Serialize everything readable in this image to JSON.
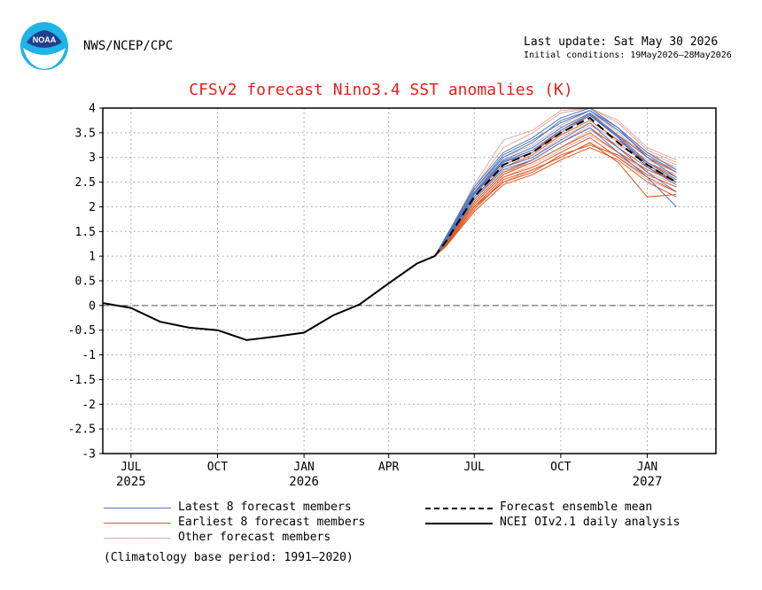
{
  "header": {
    "agency": "NWS/NCEP/CPC",
    "last_update": "Last update: Sat May 30 2026",
    "initial_conditions": "Initial conditions: 19May2026–28May2026",
    "logo_text": "NOAA"
  },
  "chart_data": {
    "type": "line",
    "title": "CFSv2 forecast Nino3.4 SST anomalies (K)",
    "xlabel": "",
    "ylabel": "",
    "ylim": [
      -3,
      4
    ],
    "yticks": [
      4,
      3.5,
      3,
      2.5,
      2,
      1.5,
      1,
      0.5,
      0,
      -0.5,
      -1,
      -1.5,
      -2,
      -2.5,
      -3
    ],
    "yticklabels": [
      "4",
      "3.5",
      "3",
      "2.5",
      "2",
      "1.5",
      "1",
      "0.5",
      "0",
      "-0.5",
      "-1",
      "-1.5",
      "-2",
      "-2.5",
      "-3"
    ],
    "xlim": [
      "2025-06-01",
      "2027-03-15"
    ],
    "xticks": [
      {
        "date": "2025-07-01",
        "month": "JUL",
        "year": "2025"
      },
      {
        "date": "2025-10-01",
        "month": "OCT",
        "year": ""
      },
      {
        "date": "2026-01-01",
        "month": "JAN",
        "year": "2026"
      },
      {
        "date": "2026-04-01",
        "month": "APR",
        "year": ""
      },
      {
        "date": "2026-07-01",
        "month": "JUL",
        "year": ""
      },
      {
        "date": "2026-10-01",
        "month": "OCT",
        "year": ""
      },
      {
        "date": "2027-01-01",
        "month": "JAN",
        "year": "2027"
      }
    ],
    "grid": true,
    "zero_line": true,
    "series": [
      {
        "name": "NCEI OIv2.1 daily analysis",
        "color": "#000000",
        "style": "solid",
        "x": [
          "2025-06-01",
          "2025-07-01",
          "2025-08-01",
          "2025-09-01",
          "2025-10-01",
          "2025-11-01",
          "2025-12-01",
          "2026-01-01",
          "2026-02-01",
          "2026-03-01",
          "2026-04-01",
          "2026-05-01",
          "2026-05-20"
        ],
        "values": [
          0.05,
          -0.05,
          -0.33,
          -0.45,
          -0.5,
          -0.7,
          -0.63,
          -0.55,
          -0.2,
          0.02,
          0.45,
          0.85,
          1.0
        ]
      },
      {
        "name": "Forecast ensemble mean",
        "color": "#000000",
        "style": "dashed",
        "x": [
          "2026-05-20",
          "2026-06-01",
          "2026-07-01",
          "2026-08-01",
          "2026-09-01",
          "2026-10-01",
          "2026-11-01",
          "2026-12-01",
          "2027-01-01",
          "2027-02-01"
        ],
        "values": [
          1.0,
          1.3,
          2.2,
          2.85,
          3.1,
          3.5,
          3.8,
          3.3,
          2.85,
          2.5
        ]
      }
    ],
    "ensemble_x": [
      "2026-05-20",
      "2026-06-01",
      "2026-07-01",
      "2026-08-01",
      "2026-09-01",
      "2026-10-01",
      "2026-11-01",
      "2026-12-01",
      "2027-01-01",
      "2027-02-01"
    ],
    "ensemble_groups": [
      {
        "name": "Latest 8 forecast members",
        "color": "#4a76c4",
        "members": [
          [
            1.0,
            1.35,
            2.3,
            2.95,
            3.2,
            3.6,
            3.9,
            3.45,
            2.9,
            2.55
          ],
          [
            1.0,
            1.4,
            2.4,
            3.1,
            3.4,
            3.8,
            4.0,
            3.6,
            3.0,
            2.6
          ],
          [
            1.0,
            1.3,
            2.2,
            2.8,
            3.0,
            3.35,
            3.7,
            3.2,
            2.7,
            2.3
          ],
          [
            1.0,
            1.38,
            2.35,
            3.0,
            3.3,
            3.75,
            3.95,
            3.55,
            3.05,
            2.7
          ],
          [
            1.0,
            1.32,
            2.25,
            2.9,
            3.1,
            3.5,
            3.85,
            3.4,
            2.8,
            2.45
          ],
          [
            1.0,
            1.36,
            2.35,
            3.05,
            3.35,
            3.7,
            3.95,
            3.6,
            3.1,
            2.75
          ],
          [
            1.0,
            1.28,
            2.15,
            2.75,
            2.95,
            3.3,
            3.6,
            3.1,
            2.6,
            2.0
          ],
          [
            1.0,
            1.33,
            2.28,
            2.92,
            3.15,
            3.55,
            3.88,
            3.42,
            2.85,
            2.5
          ]
        ]
      },
      {
        "name": "Earliest 8 forecast members",
        "color": "#e2541a",
        "members": [
          [
            1.0,
            1.25,
            2.0,
            2.6,
            2.8,
            3.1,
            3.4,
            3.0,
            2.6,
            2.3
          ],
          [
            1.0,
            1.22,
            1.95,
            2.55,
            2.75,
            3.0,
            3.3,
            2.9,
            2.2,
            2.25
          ],
          [
            1.0,
            1.28,
            2.1,
            2.7,
            2.95,
            3.3,
            3.6,
            3.2,
            2.8,
            2.5
          ],
          [
            1.0,
            1.3,
            2.2,
            2.8,
            3.05,
            3.45,
            3.75,
            3.35,
            2.9,
            2.6
          ],
          [
            1.0,
            1.2,
            1.9,
            2.45,
            2.65,
            2.95,
            3.2,
            2.95,
            2.5,
            2.2
          ],
          [
            1.0,
            1.27,
            2.05,
            2.65,
            2.9,
            3.2,
            3.5,
            3.1,
            2.75,
            2.5
          ],
          [
            1.0,
            1.32,
            2.25,
            2.85,
            3.1,
            3.55,
            3.85,
            3.45,
            3.0,
            2.7
          ],
          [
            1.0,
            1.24,
            2.0,
            2.5,
            2.7,
            3.05,
            3.25,
            3.05,
            2.65,
            2.4
          ]
        ]
      },
      {
        "name": "Other forecast members",
        "color": "#e8a89a",
        "members": [
          [
            1.0,
            1.35,
            2.4,
            3.2,
            3.5,
            3.9,
            4.0,
            3.7,
            3.15,
            2.9
          ],
          [
            1.0,
            1.3,
            2.3,
            3.0,
            3.25,
            3.65,
            3.95,
            3.5,
            3.0,
            2.75
          ],
          [
            1.0,
            1.25,
            2.1,
            2.7,
            2.9,
            3.2,
            3.55,
            3.25,
            2.9,
            2.65
          ],
          [
            1.0,
            1.28,
            2.15,
            2.8,
            3.0,
            3.4,
            3.7,
            3.3,
            2.85,
            2.55
          ],
          [
            1.0,
            1.22,
            2.0,
            2.6,
            2.85,
            3.15,
            3.45,
            3.1,
            2.7,
            2.45
          ],
          [
            1.0,
            1.38,
            2.45,
            3.35,
            3.55,
            3.95,
            4.0,
            3.75,
            3.2,
            2.95
          ],
          [
            1.0,
            1.2,
            1.95,
            2.5,
            2.75,
            3.0,
            3.3,
            3.0,
            2.55,
            2.3
          ],
          [
            1.0,
            1.33,
            2.3,
            2.95,
            3.2,
            3.6,
            3.9,
            3.55,
            3.1,
            2.85
          ],
          [
            1.0,
            1.26,
            2.05,
            2.65,
            2.95,
            3.3,
            3.65,
            3.35,
            2.95,
            2.7
          ],
          [
            1.0,
            1.31,
            2.25,
            2.9,
            3.15,
            3.5,
            3.85,
            3.45,
            3.05,
            2.8
          ]
        ]
      }
    ],
    "legend": {
      "placement": "bottom",
      "entries": [
        {
          "label": "Latest 8 forecast members",
          "color": "#4a76c4",
          "style": "thin"
        },
        {
          "label": "Earliest 8 forecast members",
          "color": "#e2541a",
          "style": "thin"
        },
        {
          "label": "Other forecast members",
          "color": "#e8a89a",
          "style": "thin"
        },
        {
          "label": "Forecast ensemble mean",
          "color": "#000000",
          "style": "dashed"
        },
        {
          "label": "NCEI OIv2.1 daily analysis",
          "color": "#000000",
          "style": "solid"
        }
      ]
    },
    "footnote": "(Climatology base period: 1991–2020)"
  }
}
